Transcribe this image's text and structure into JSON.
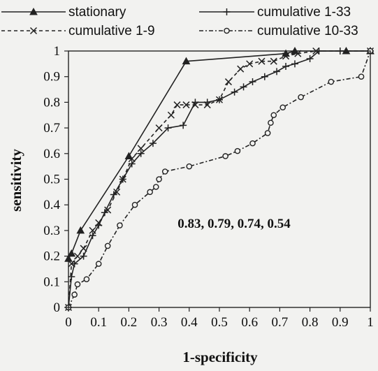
{
  "chart_data": {
    "type": "line",
    "title": "",
    "xlabel": "1-specificity",
    "ylabel": "sensitivity",
    "xlim": [
      0,
      1
    ],
    "ylim": [
      0,
      1
    ],
    "xticks": [
      "0",
      "0.1",
      "0.2",
      "0.3",
      "0.4",
      "0.5",
      "0.6",
      "0.7",
      "0.8",
      "0.9",
      "1"
    ],
    "yticks": [
      "0",
      "0.1",
      "0.2",
      "0.3",
      "0.4",
      "0.5",
      "0.6",
      "0.7",
      "0.8",
      "0.9",
      "1"
    ],
    "grid": false,
    "legend_position": "top",
    "annotation": "0.83, 0.79, 0.74, 0.54",
    "series": [
      {
        "name": "stationary",
        "style": "solid",
        "marker": "triangle",
        "color": "#222222",
        "points": [
          [
            0,
            0.19
          ],
          [
            0.01,
            0.21
          ],
          [
            0.04,
            0.3
          ],
          [
            0.2,
            0.59
          ],
          [
            0.39,
            0.96
          ],
          [
            0.72,
            0.99
          ],
          [
            0.75,
            1.0
          ],
          [
            0.92,
            1.0
          ],
          [
            1.0,
            1.0
          ]
        ]
      },
      {
        "name": "cumulative 1-33",
        "style": "solid",
        "marker": "plus",
        "color": "#222222",
        "points": [
          [
            0,
            0
          ],
          [
            0.01,
            0.12
          ],
          [
            0.02,
            0.17
          ],
          [
            0.05,
            0.2
          ],
          [
            0.08,
            0.28
          ],
          [
            0.1,
            0.32
          ],
          [
            0.12,
            0.37
          ],
          [
            0.15,
            0.44
          ],
          [
            0.18,
            0.5
          ],
          [
            0.21,
            0.56
          ],
          [
            0.24,
            0.6
          ],
          [
            0.28,
            0.64
          ],
          [
            0.33,
            0.7
          ],
          [
            0.38,
            0.71
          ],
          [
            0.42,
            0.8
          ],
          [
            0.46,
            0.8
          ],
          [
            0.5,
            0.81
          ],
          [
            0.55,
            0.84
          ],
          [
            0.58,
            0.86
          ],
          [
            0.61,
            0.88
          ],
          [
            0.65,
            0.9
          ],
          [
            0.69,
            0.92
          ],
          [
            0.72,
            0.94
          ],
          [
            0.75,
            0.95
          ],
          [
            0.8,
            0.97
          ],
          [
            0.83,
            1.0
          ],
          [
            0.9,
            1.0
          ],
          [
            1.0,
            1.0
          ]
        ]
      },
      {
        "name": "cumulative 1-9",
        "style": "dashed",
        "marker": "x",
        "color": "#222222",
        "points": [
          [
            0,
            0
          ],
          [
            0.01,
            0.17
          ],
          [
            0.03,
            0.2
          ],
          [
            0.05,
            0.23
          ],
          [
            0.08,
            0.3
          ],
          [
            0.1,
            0.33
          ],
          [
            0.13,
            0.38
          ],
          [
            0.16,
            0.45
          ],
          [
            0.18,
            0.5
          ],
          [
            0.21,
            0.58
          ],
          [
            0.24,
            0.62
          ],
          [
            0.3,
            0.7
          ],
          [
            0.34,
            0.75
          ],
          [
            0.36,
            0.79
          ],
          [
            0.39,
            0.79
          ],
          [
            0.42,
            0.79
          ],
          [
            0.46,
            0.79
          ],
          [
            0.5,
            0.81
          ],
          [
            0.53,
            0.88
          ],
          [
            0.57,
            0.93
          ],
          [
            0.6,
            0.95
          ],
          [
            0.64,
            0.96
          ],
          [
            0.68,
            0.96
          ],
          [
            0.72,
            0.98
          ],
          [
            0.76,
            0.99
          ],
          [
            0.82,
            1.0
          ],
          [
            1.0,
            1.0
          ]
        ]
      },
      {
        "name": "cumulative 10-33",
        "style": "dashdot",
        "marker": "circle",
        "color": "#222222",
        "points": [
          [
            0,
            0
          ],
          [
            0.02,
            0.05
          ],
          [
            0.03,
            0.09
          ],
          [
            0.06,
            0.11
          ],
          [
            0.1,
            0.17
          ],
          [
            0.13,
            0.24
          ],
          [
            0.17,
            0.32
          ],
          [
            0.22,
            0.4
          ],
          [
            0.27,
            0.45
          ],
          [
            0.29,
            0.47
          ],
          [
            0.3,
            0.5
          ],
          [
            0.32,
            0.53
          ],
          [
            0.4,
            0.55
          ],
          [
            0.52,
            0.59
          ],
          [
            0.56,
            0.61
          ],
          [
            0.61,
            0.64
          ],
          [
            0.66,
            0.68
          ],
          [
            0.67,
            0.72
          ],
          [
            0.68,
            0.75
          ],
          [
            0.71,
            0.78
          ],
          [
            0.77,
            0.82
          ],
          [
            0.87,
            0.88
          ],
          [
            0.97,
            0.9
          ],
          [
            1.0,
            1.0
          ]
        ]
      }
    ]
  }
}
